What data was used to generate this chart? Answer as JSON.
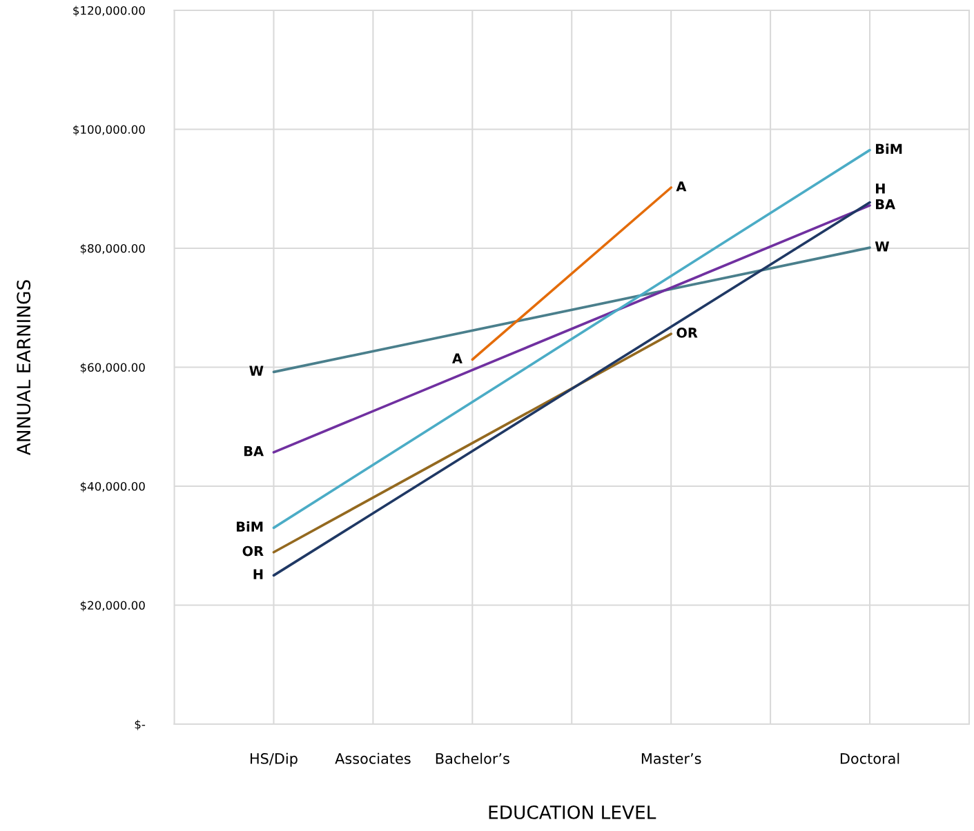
{
  "chart_data": {
    "type": "line",
    "xlabel": "EDUCATION LEVEL",
    "ylabel": "ANNUAL EARNINGS",
    "categories": [
      "HS/Dip",
      "Associates",
      "Bachelor’s",
      null,
      "Master’s",
      null,
      "Doctoral"
    ],
    "ylim": [
      0,
      120000
    ],
    "yticks": [
      {
        "value": 0,
        "label": "$-"
      },
      {
        "value": 20000,
        "label": "$20,000.00"
      },
      {
        "value": 40000,
        "label": "$40,000.00"
      },
      {
        "value": 60000,
        "label": "$60,000.00"
      },
      {
        "value": 80000,
        "label": "$80,000.00"
      },
      {
        "value": 100000,
        "label": "$100,000.00"
      },
      {
        "value": 120000,
        "label": "$120,000.00"
      }
    ],
    "grid": true,
    "legend": false,
    "marker": "none",
    "line_style": "solid",
    "series": [
      {
        "name": "W",
        "color": "#4a7f8c",
        "values": [
          59200,
          null,
          null,
          null,
          null,
          null,
          80100
        ]
      },
      {
        "name": "BA",
        "color": "#7030a0",
        "values": [
          45700,
          null,
          null,
          null,
          null,
          null,
          87200
        ]
      },
      {
        "name": "BiM",
        "color": "#4bacc6",
        "values": [
          33000,
          null,
          null,
          null,
          null,
          null,
          96500
        ]
      },
      {
        "name": "OR",
        "color": "#94691f",
        "values": [
          28900,
          null,
          null,
          null,
          65600,
          null,
          null
        ]
      },
      {
        "name": "H",
        "color": "#1f3864",
        "values": [
          25000,
          null,
          null,
          null,
          null,
          null,
          87700
        ]
      },
      {
        "name": "A",
        "color": "#e46c0a",
        "values": [
          null,
          null,
          61300,
          null,
          90200,
          null,
          null
        ]
      }
    ]
  }
}
